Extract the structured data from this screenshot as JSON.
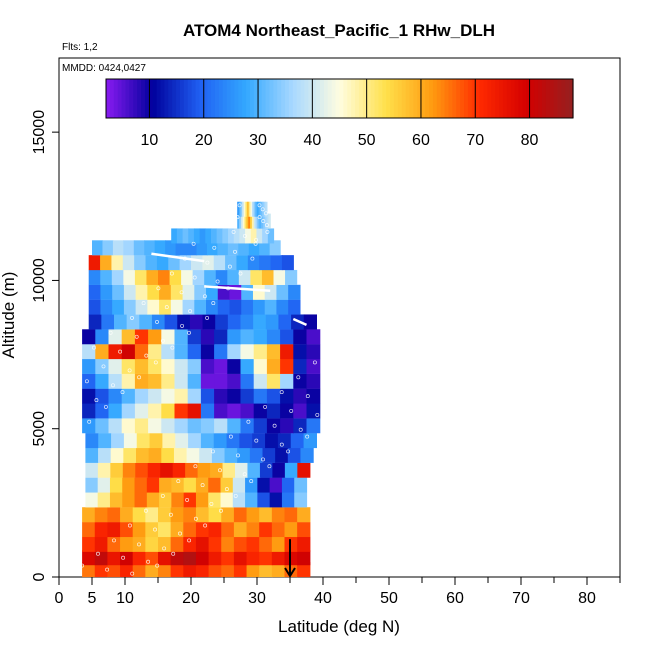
{
  "chart_data": {
    "type": "heatmap",
    "title": "ATOM4 Northeast_Pacific_1 RHw_DLH",
    "subtitle_flights": "Flts: 1,2",
    "subtitle_dates": "MMDD: 0424,0427",
    "xlabel": "Latitude (deg N)",
    "ylabel": "Altitude (m)",
    "xlim": [
      0,
      85
    ],
    "ylim": [
      0,
      17500
    ],
    "x_ticks": [
      0,
      5,
      10,
      20,
      30,
      40,
      50,
      60,
      70,
      80
    ],
    "x_tick_labels": [
      "0",
      "5",
      "10",
      "20",
      "30",
      "40",
      "50",
      "60",
      "70",
      "80"
    ],
    "y_ticks": [
      0,
      5000,
      10000,
      15000
    ],
    "y_tick_labels": [
      "0",
      "5000",
      "10000",
      "15000"
    ],
    "colorbar": {
      "range": [
        2,
        88
      ],
      "ticks": [
        10,
        20,
        30,
        40,
        50,
        60,
        70,
        80
      ],
      "tick_labels": [
        "10",
        "20",
        "30",
        "40",
        "50",
        "60",
        "70",
        "80"
      ],
      "colors": [
        "#8a1bf2",
        "#00009c",
        "#1f5ff2",
        "#33a8ff",
        "#a8d8ff",
        "#fffde0",
        "#ffe04a",
        "#ff9a10",
        "#ff2a00",
        "#d40000",
        "#952020"
      ]
    },
    "arrow_marker": {
      "x": 35,
      "y": 600
    },
    "rows": [
      {
        "alt": 250,
        "x0": 3.5,
        "x1": 38,
        "v": [
          65,
          70,
          68,
          72,
          66,
          60,
          64,
          70,
          74,
          72,
          68,
          66,
          70,
          62,
          58,
          60,
          66,
          70
        ]
      },
      {
        "alt": 650,
        "x0": 3.5,
        "x1": 38,
        "v": [
          78,
          82,
          75,
          80,
          72,
          68,
          76,
          82,
          84,
          80,
          74,
          70,
          76,
          72,
          70,
          74,
          78,
          80
        ]
      },
      {
        "alt": 1100,
        "x0": 3.5,
        "x1": 38,
        "v": [
          70,
          74,
          66,
          62,
          60,
          55,
          58,
          66,
          72,
          76,
          70,
          64,
          68,
          70,
          66,
          62,
          70,
          74
        ]
      },
      {
        "alt": 1600,
        "x0": 3.5,
        "x1": 38,
        "v": [
          66,
          72,
          74,
          68,
          62,
          56,
          52,
          60,
          66,
          70,
          72,
          66,
          60,
          64,
          70,
          66,
          62,
          68
        ]
      },
      {
        "alt": 2100,
        "x0": 3.5,
        "x1": 38,
        "v": [
          60,
          64,
          66,
          60,
          54,
          50,
          56,
          62,
          64,
          58,
          54,
          60,
          66,
          62,
          58,
          64,
          66,
          60
        ]
      },
      {
        "alt": 2600,
        "x0": 4,
        "x1": 37.5,
        "v": [
          44,
          50,
          58,
          62,
          66,
          60,
          56,
          64,
          70,
          62,
          52,
          46,
          38,
          30,
          18,
          12,
          22,
          34
        ]
      },
      {
        "alt": 3100,
        "x0": 4,
        "x1": 37.5,
        "v": [
          34,
          42,
          54,
          62,
          66,
          70,
          60,
          58,
          54,
          60,
          66,
          56,
          40,
          26,
          12,
          6,
          20,
          32
        ]
      },
      {
        "alt": 3600,
        "x0": 4,
        "x1": 38,
        "v": [
          40,
          48,
          56,
          64,
          68,
          72,
          76,
          72,
          66,
          62,
          60,
          50,
          42,
          30,
          16,
          10,
          28,
          76
        ]
      },
      {
        "alt": 4100,
        "x0": 4,
        "x1": 38.5,
        "v": [
          30,
          38,
          46,
          52,
          58,
          60,
          54,
          48,
          44,
          40,
          34,
          30,
          26,
          22,
          16,
          12,
          18,
          24
        ]
      },
      {
        "alt": 4600,
        "x0": 4,
        "x1": 39,
        "v": [
          24,
          30,
          36,
          44,
          52,
          56,
          48,
          42,
          36,
          30,
          26,
          22,
          18,
          16,
          12,
          14,
          20,
          26
        ]
      },
      {
        "alt": 5100,
        "x0": 3.5,
        "x1": 39.5,
        "v": [
          26,
          32,
          38,
          46,
          50,
          44,
          40,
          36,
          32,
          34,
          38,
          30,
          22,
          16,
          10,
          8,
          14,
          22
        ]
      },
      {
        "alt": 5600,
        "x0": 3.5,
        "x1": 39.5,
        "v": [
          14,
          20,
          28,
          36,
          42,
          48,
          54,
          70,
          76,
          22,
          6,
          4,
          6,
          10,
          14,
          10,
          6,
          12
        ]
      },
      {
        "alt": 6100,
        "x0": 3.5,
        "x1": 39.5,
        "v": [
          12,
          18,
          24,
          30,
          36,
          40,
          44,
          48,
          36,
          18,
          8,
          10,
          16,
          22,
          18,
          12,
          8,
          10
        ]
      },
      {
        "alt": 6600,
        "x0": 3.5,
        "x1": 39.5,
        "v": [
          20,
          28,
          38,
          48,
          60,
          58,
          50,
          40,
          30,
          4,
          4,
          6,
          22,
          40,
          52,
          36,
          10,
          8
        ]
      },
      {
        "alt": 7100,
        "x0": 3.5,
        "x1": 39.5,
        "v": [
          26,
          34,
          42,
          52,
          58,
          52,
          46,
          40,
          34,
          6,
          4,
          10,
          28,
          46,
          60,
          70,
          14,
          6
        ]
      },
      {
        "alt": 7600,
        "x0": 3.5,
        "x1": 39.5,
        "v": [
          38,
          60,
          74,
          80,
          66,
          50,
          38,
          30,
          20,
          10,
          22,
          36,
          44,
          50,
          58,
          74,
          12,
          8
        ]
      },
      {
        "alt": 8100,
        "x0": 3.5,
        "x1": 39.5,
        "v": [
          10,
          24,
          42,
          58,
          70,
          62,
          44,
          30,
          16,
          8,
          14,
          26,
          30,
          28,
          24,
          18,
          10,
          6
        ]
      },
      {
        "alt": 8600,
        "x0": 4.5,
        "x1": 39,
        "v": [
          14,
          22,
          30,
          34,
          30,
          24,
          18,
          12,
          8,
          10,
          16,
          20,
          24,
          28,
          26,
          20,
          14,
          10
        ]
      },
      {
        "alt": 9100,
        "x0": 4.5,
        "x1": 36.5,
        "v": [
          18,
          24,
          28,
          34,
          40,
          46,
          52,
          44,
          36,
          30,
          24,
          20,
          18,
          22,
          26,
          30,
          24,
          20
        ]
      },
      {
        "alt": 9600,
        "x0": 4.5,
        "x1": 36.5,
        "v": [
          20,
          26,
          32,
          40,
          48,
          54,
          60,
          52,
          42,
          34,
          28,
          6,
          4,
          30,
          46,
          40,
          32,
          24
        ]
      },
      {
        "alt": 10100,
        "x0": 4.5,
        "x1": 36,
        "v": [
          24,
          30,
          36,
          44,
          52,
          60,
          64,
          54,
          44,
          36,
          30,
          24,
          30,
          40,
          52,
          58,
          44,
          34
        ]
      },
      {
        "alt": 10600,
        "x0": 4.5,
        "x1": 35.5,
        "v": [
          74,
          60,
          48,
          40,
          34,
          30,
          28,
          32,
          36,
          40,
          42,
          38,
          32,
          28,
          24,
          22,
          20,
          18
        ]
      },
      {
        "alt": 11100,
        "x0": 5,
        "x1": 33.5,
        "v": [
          30,
          34,
          38,
          36,
          32,
          30,
          28,
          26,
          24,
          24,
          26,
          28,
          30,
          32,
          30,
          28,
          30,
          34
        ]
      },
      {
        "alt": 11500,
        "x0": 17,
        "x1": 32.5,
        "v": [
          28,
          30,
          32,
          30,
          28,
          26,
          28,
          30,
          32,
          34,
          36,
          38,
          40,
          44,
          48,
          40,
          36,
          32
        ]
      },
      {
        "alt": 12000,
        "x0": 27,
        "x1": 32,
        "v": [
          30,
          34,
          40,
          46,
          52,
          58,
          64,
          56,
          48,
          40,
          36,
          32,
          30,
          32,
          34,
          36,
          38,
          40
        ]
      },
      {
        "alt": 12400,
        "x0": 27,
        "x1": 31.5,
        "v": [
          26,
          30,
          34,
          40,
          46,
          52,
          58,
          50,
          44,
          38,
          34,
          30,
          28,
          30,
          32,
          34,
          36,
          38
        ]
      }
    ]
  }
}
